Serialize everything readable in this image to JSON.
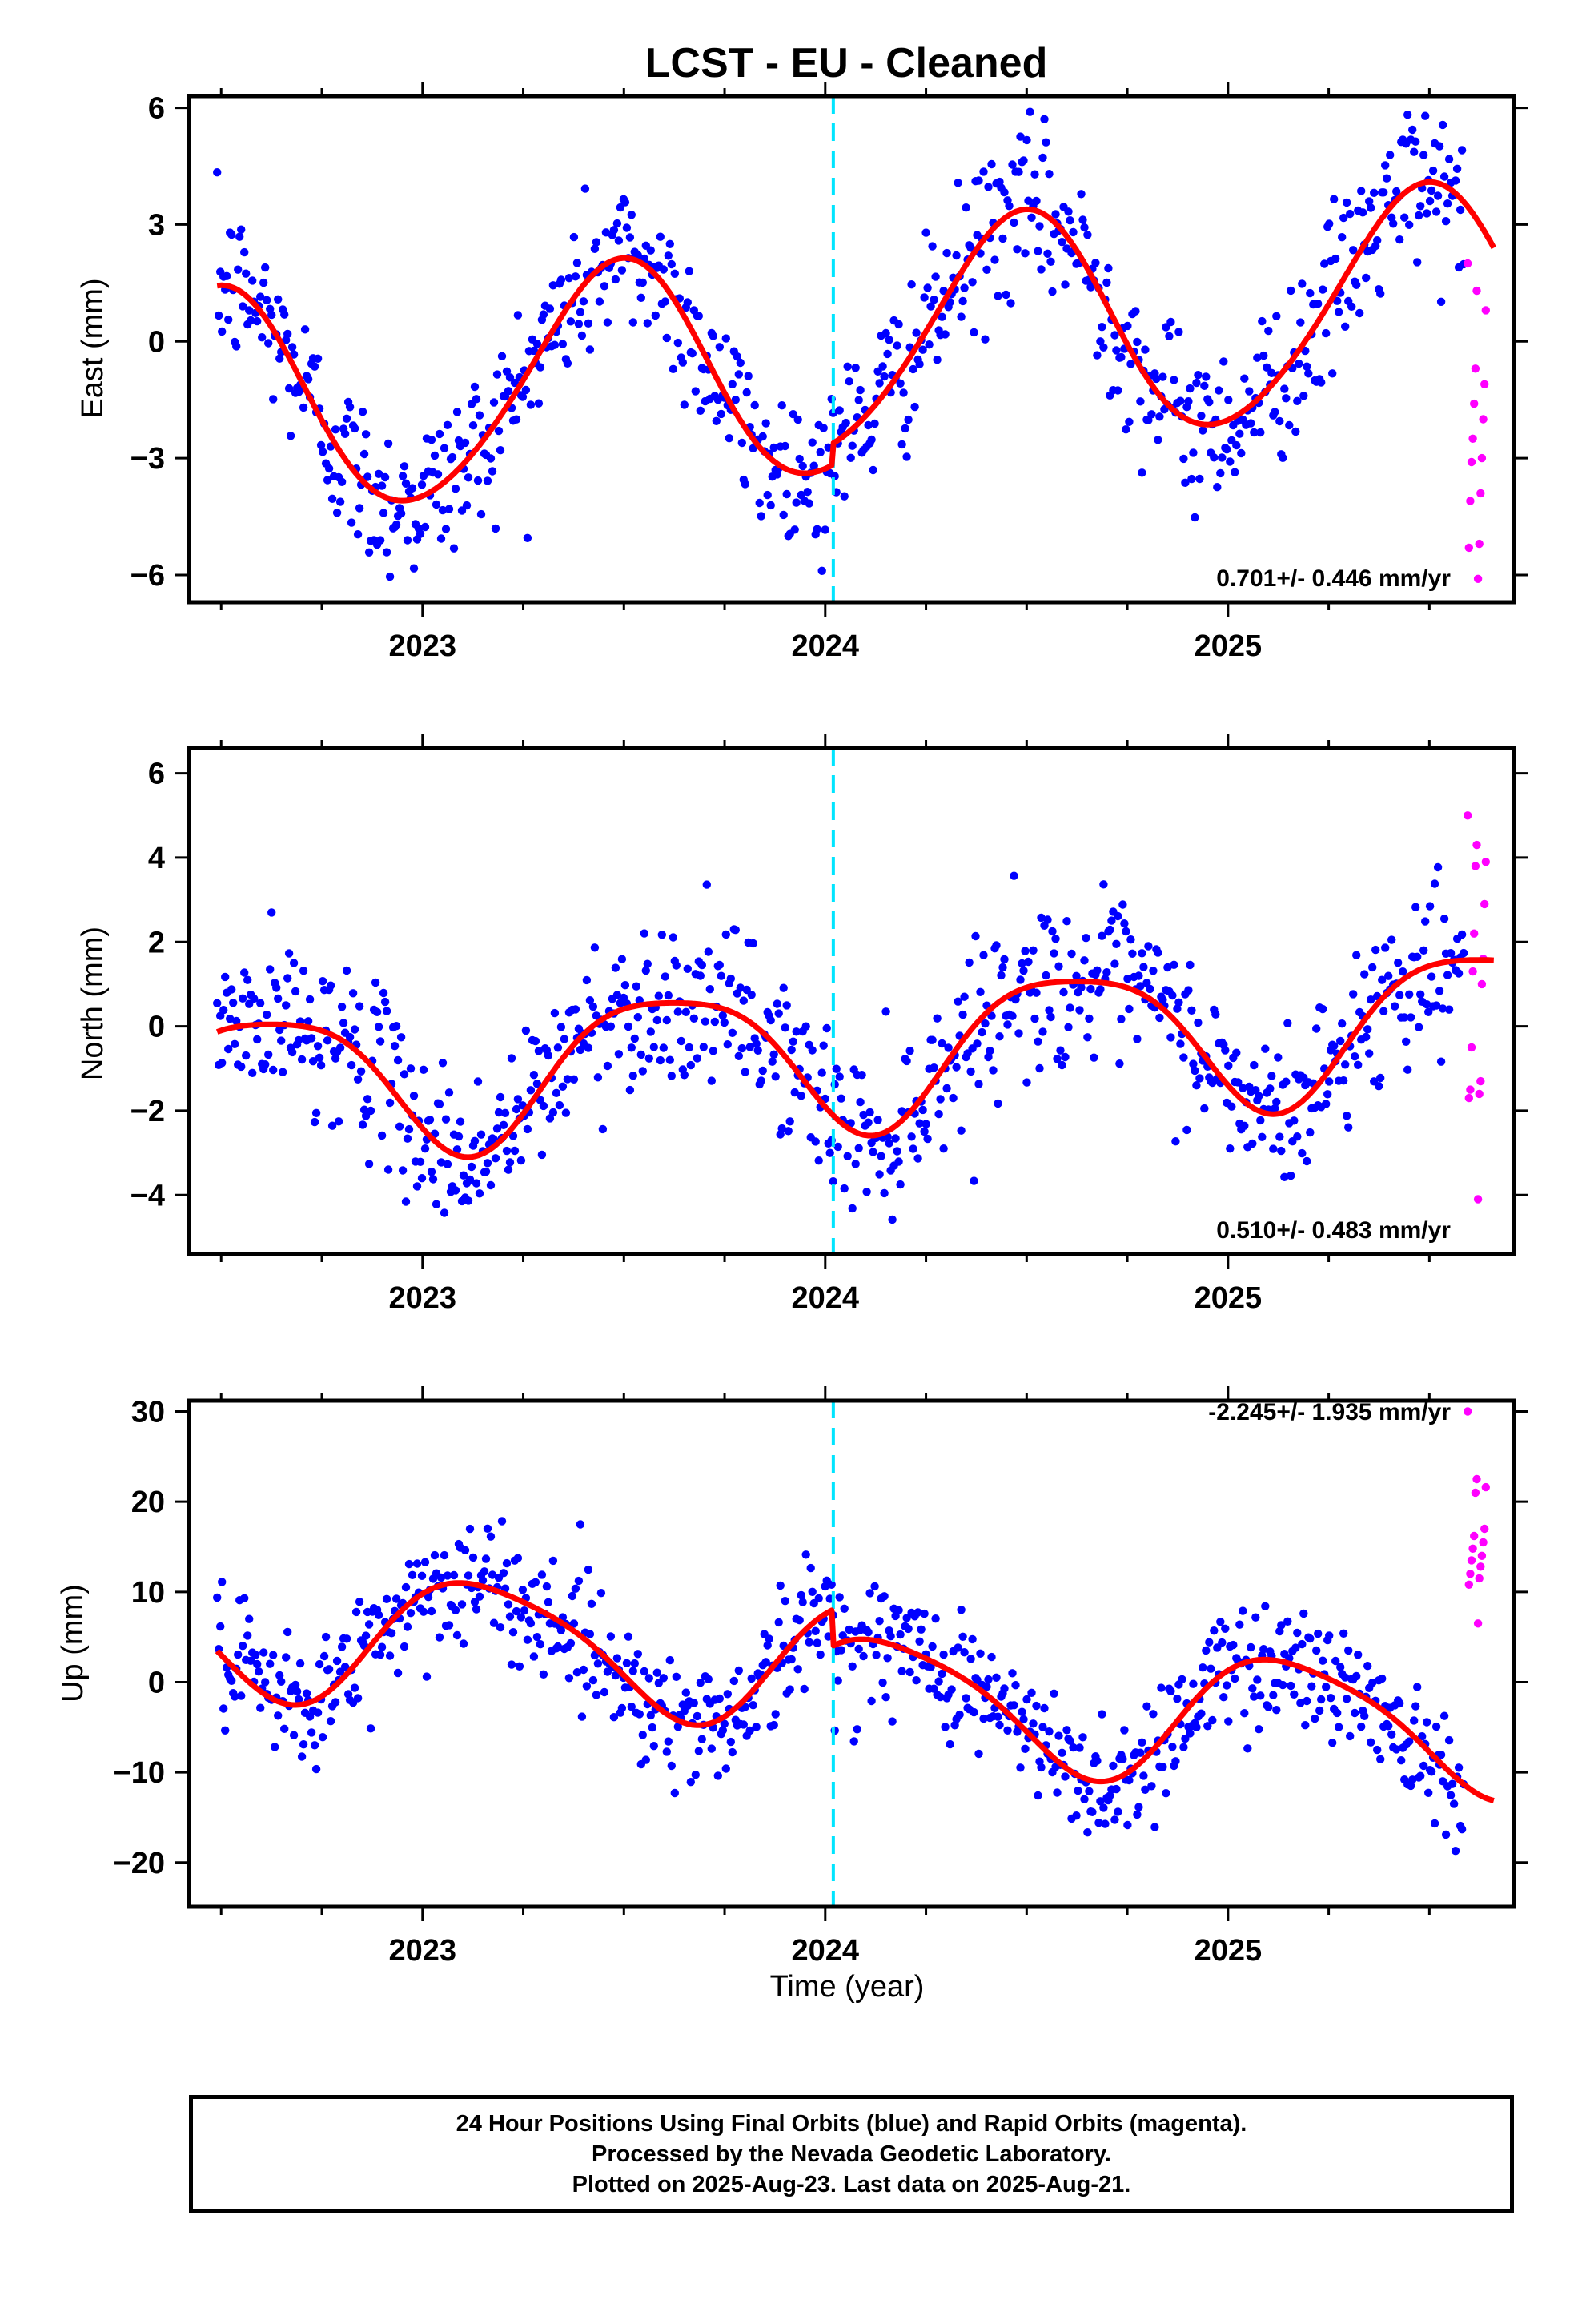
{
  "title": "LCST  - EU - Cleaned",
  "xlabel": "Time (year)",
  "footer": {
    "line1": "24 Hour Positions Using Final Orbits (blue) and Rapid Orbits (magenta).",
    "line2": "Processed by the Nevada Geodetic Laboratory.",
    "line3": "Plotted on 2025-Aug-23. Last data on 2025-Aug-21."
  },
  "colors": {
    "final": "#0000ff",
    "rapid": "#ff00ff",
    "model": "#ff0000",
    "event": "#00e5ff",
    "frame": "#000000"
  },
  "chart_data": [
    {
      "type": "scatter",
      "ylabel": "East (mm)",
      "rate_label": "0.701+/- 0.446 mm/yr",
      "xlim": [
        2022.42,
        2025.71
      ],
      "ylim": [
        -6.7,
        6.3
      ],
      "yticks": [
        -6,
        -3,
        0,
        3,
        6
      ],
      "xticks": [
        2023,
        2024,
        2025
      ],
      "tick_labels": [
        "2023",
        "2024",
        "2025"
      ],
      "y_tick_labels": [
        "−6",
        "−3",
        "0",
        "3",
        "6"
      ],
      "event_x": 2024.02,
      "model": {
        "rate": 0.701,
        "amp1": 2.9,
        "phase1": 4.83,
        "amp2": 0.25,
        "phase2": 1.0,
        "offset": -0.6,
        "epochs": [
          {
            "t": 2024.02,
            "jump": 0.55
          }
        ]
      },
      "scatter_sigma": 1.05,
      "n_final": 780,
      "rapid_values": [
        2.0,
        1.3,
        0.8,
        -0.7,
        -1.1,
        -1.6,
        -2.0,
        -2.5,
        -3.0,
        -3.1,
        -3.9,
        -4.1,
        -5.2,
        -5.3,
        -6.1
      ]
    },
    {
      "type": "scatter",
      "ylabel": "North (mm)",
      "rate_label": "0.510+/- 0.483 mm/yr",
      "xlim": [
        2022.42,
        2025.71
      ],
      "ylim": [
        -5.4,
        6.6
      ],
      "yticks": [
        -4,
        -2,
        0,
        2,
        4,
        6
      ],
      "xticks": [
        2023,
        2024,
        2025
      ],
      "tick_labels": [
        "2023",
        "2024",
        "2025"
      ],
      "y_tick_labels": [
        "−4",
        "−2",
        "0",
        "2",
        "4",
        "6"
      ],
      "event_x": 2024.02,
      "model": {
        "rate": 0.51,
        "amp1": 1.7,
        "phase1": 4.0,
        "amp2": 0.35,
        "phase2": 3.2,
        "offset": -0.6,
        "epochs": [
          {
            "t": 2024.02,
            "jump": 0.0
          }
        ]
      },
      "scatter_sigma": 0.95,
      "n_final": 780,
      "rapid_values": [
        5.0,
        4.3,
        3.9,
        3.8,
        2.9,
        2.2,
        1.6,
        1.3,
        1.0,
        -0.5,
        -1.3,
        -1.5,
        -1.6,
        -1.7,
        -4.1
      ]
    },
    {
      "type": "scatter",
      "ylabel": "Up (mm)",
      "rate_label": "-2.245+/- 1.935 mm/yr",
      "xlim": [
        2022.42,
        2025.71
      ],
      "ylim": [
        -24.9,
        31.2
      ],
      "yticks": [
        -20,
        -10,
        0,
        10,
        20,
        30
      ],
      "xticks": [
        2023,
        2024,
        2025
      ],
      "tick_labels": [
        "2023",
        "2024",
        "2025"
      ],
      "y_tick_labels": [
        "−20",
        "−10",
        "0",
        "10",
        "20",
        "30"
      ],
      "event_x": 2024.02,
      "model": {
        "rate": -2.245,
        "amp1": 7.0,
        "phase1": 0.6,
        "amp2": 1.2,
        "phase2": 2.0,
        "offset": 2.5,
        "epochs": [
          {
            "t": 2024.02,
            "jump": -4.0
          }
        ]
      },
      "scatter_sigma": 3.6,
      "n_final": 780,
      "rapid_values": [
        30.0,
        22.5,
        21.6,
        21.0,
        17.0,
        16.2,
        15.5,
        14.8,
        14.0,
        13.5,
        12.8,
        12.0,
        11.5,
        10.8,
        6.5
      ]
    }
  ]
}
